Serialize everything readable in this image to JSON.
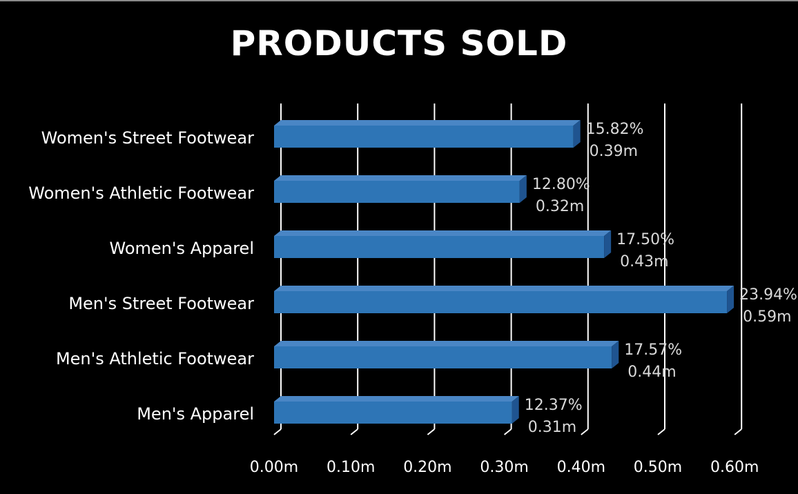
{
  "chart_data": {
    "type": "bar",
    "orientation": "horizontal",
    "style": "3d",
    "title": "PRODUCTS SOLD",
    "categories": [
      "Women's Street Footwear",
      "Women's Athletic Footwear",
      "Women's Apparel",
      "Men's Street Footwear",
      "Men's Athletic Footwear",
      "Men's Apparel"
    ],
    "values": [
      0.39,
      0.32,
      0.43,
      0.59,
      0.44,
      0.31
    ],
    "value_labels": [
      "0.39m",
      "0.32m",
      "0.43m",
      "0.59m",
      "0.44m",
      "0.31m"
    ],
    "percent_labels": [
      "15.82%",
      "12.80%",
      "17.50%",
      "23.94%",
      "17.57%",
      "12.37%"
    ],
    "xlim": [
      0,
      0.6
    ],
    "x_ticks": [
      "0.00m",
      "0.10m",
      "0.20m",
      "0.30m",
      "0.40m",
      "0.50m",
      "0.60m"
    ],
    "grid": true,
    "legend": "none",
    "colors": {
      "background": "#000000",
      "bar": "#2e75b6",
      "bar_top": "#4a86c5",
      "bar_side": "#1f5490",
      "grid": "#ffffff",
      "text": "#ffffff",
      "data_label": "#d9d9d9"
    }
  }
}
